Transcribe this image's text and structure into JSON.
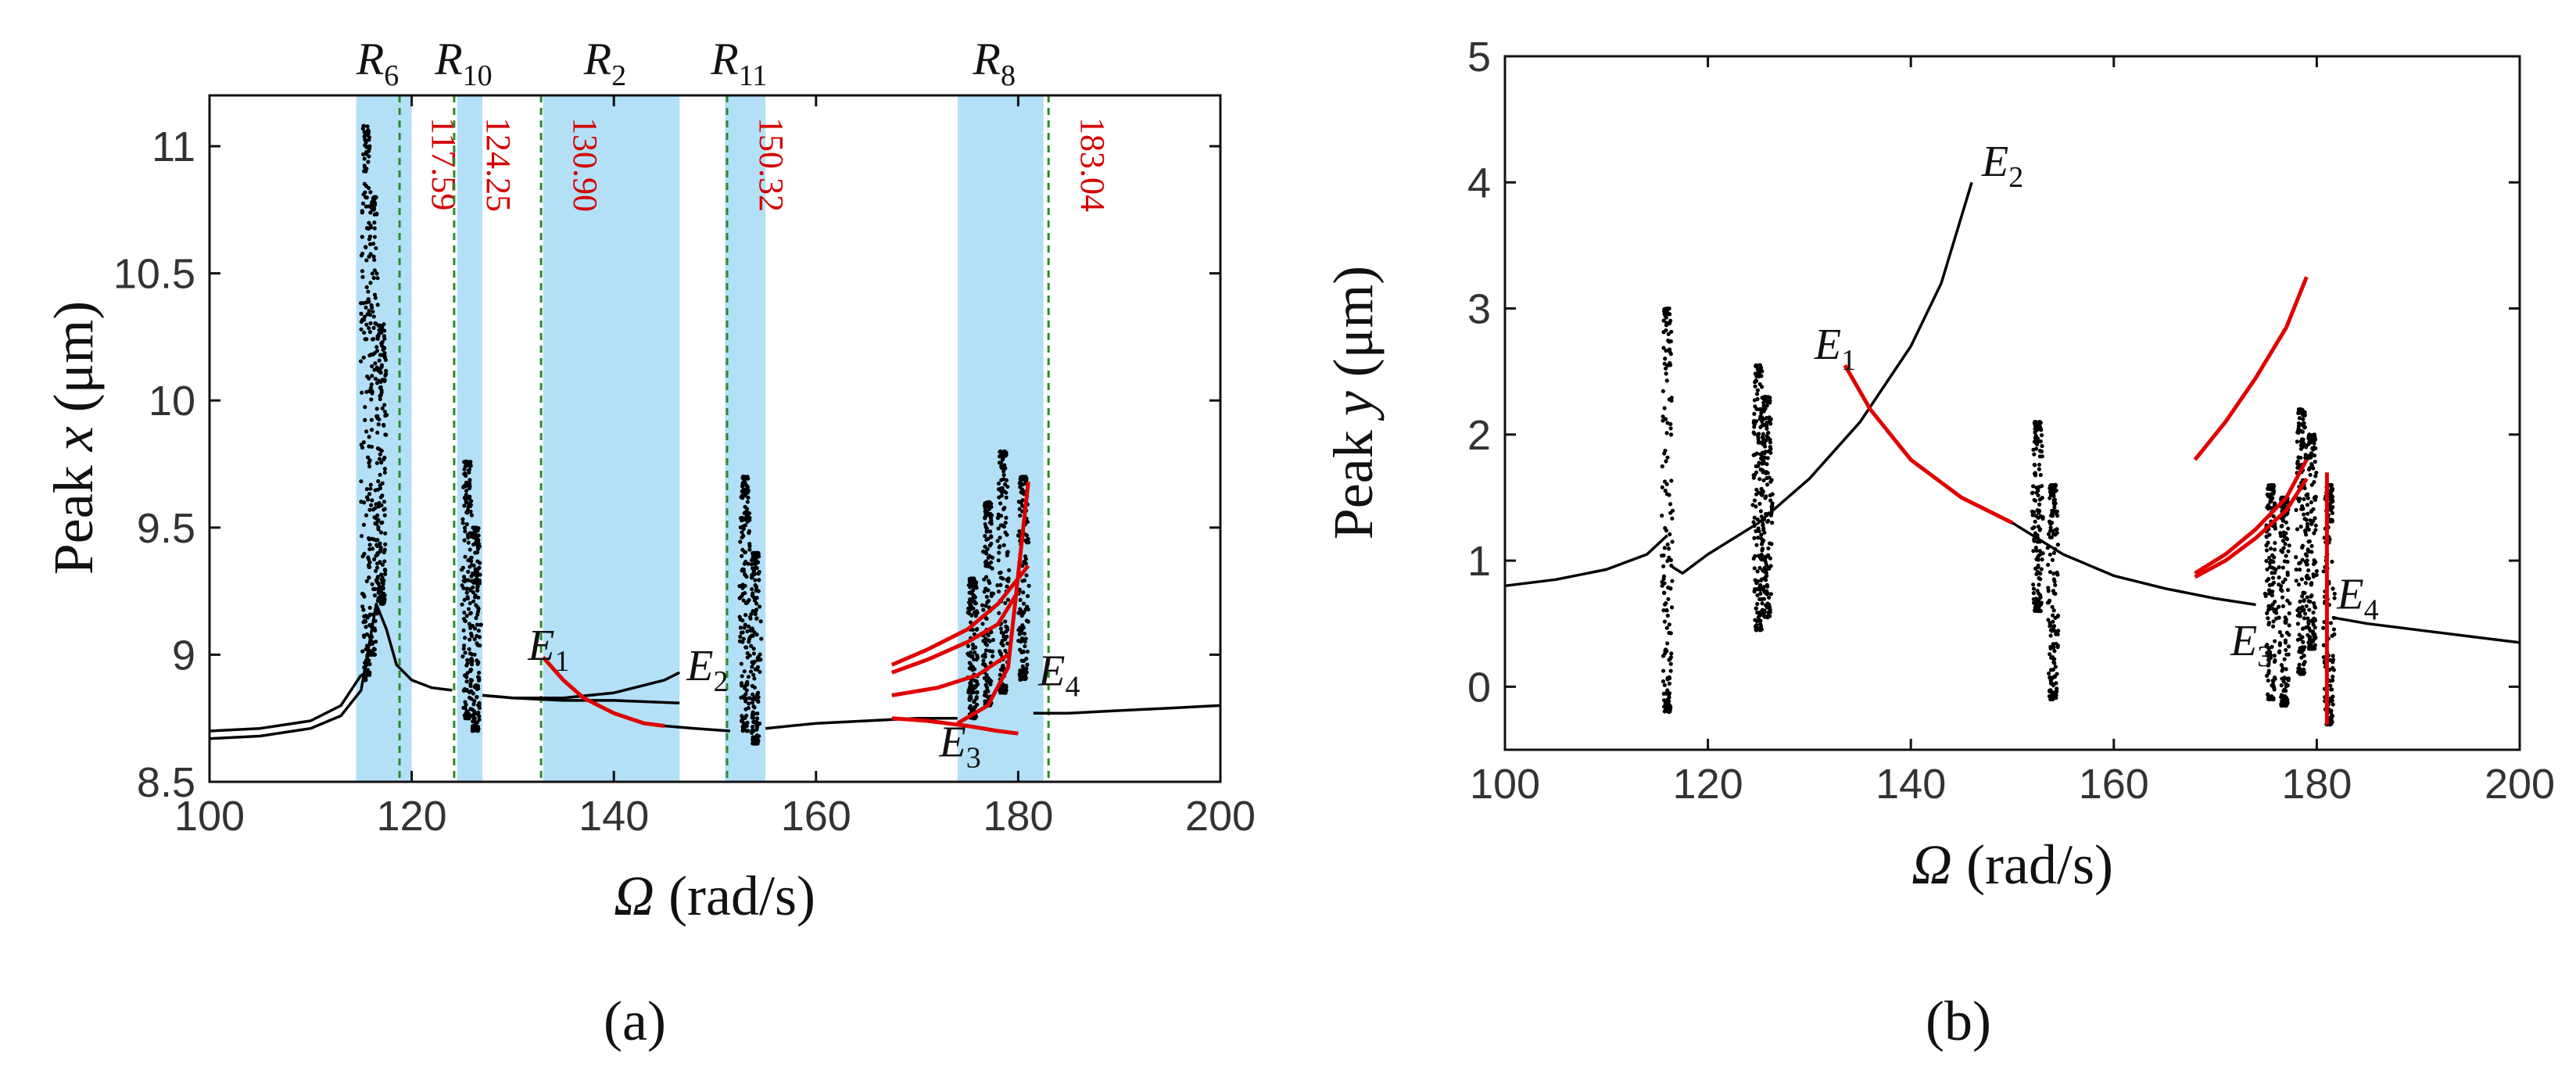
{
  "figure": {
    "panel_a_label": "(a)",
    "panel_b_label": "(b)"
  },
  "chart_data": [
    {
      "type": "scatter",
      "panel": "a",
      "title": "",
      "xlabel": "Ω (rad/s)",
      "ylabel": "Peak x (μm)",
      "xlim": [
        100,
        200
      ],
      "ylim": [
        8.5,
        11.2
      ],
      "xticks": [
        100,
        120,
        140,
        160,
        180,
        200
      ],
      "yticks": [
        8.5,
        9,
        9.5,
        10,
        10.5,
        11
      ],
      "colors": {
        "stable": "#000000",
        "unstable": "#e00000",
        "region": "#b3e0f7",
        "guide": "#2a8a2a",
        "guide_label": "#d40000"
      },
      "regions": [
        {
          "name": "R6",
          "base": "R",
          "sub": "6",
          "x0": 114.5,
          "x1": 120.0
        },
        {
          "name": "R10",
          "base": "R",
          "sub": "10",
          "x0": 124.5,
          "x1": 127.0
        },
        {
          "name": "R2",
          "base": "R",
          "sub": "2",
          "x0": 133.0,
          "x1": 146.5
        },
        {
          "name": "R11",
          "base": "R",
          "sub": "11",
          "x0": 151.0,
          "x1": 155.0
        },
        {
          "name": "R8",
          "base": "R",
          "sub": "8",
          "x0": 174.0,
          "x1": 182.5
        }
      ],
      "guides": [
        {
          "x": 118.8,
          "label": "117.59"
        },
        {
          "x": 124.2,
          "label": "124.25"
        },
        {
          "x": 132.8,
          "label": "130.90"
        },
        {
          "x": 151.2,
          "label": "150.32"
        },
        {
          "x": 183.0,
          "label": "183.04"
        }
      ],
      "series": [
        {
          "name": "branch-lower",
          "color": "stable",
          "x": [
            100,
            105,
            110,
            113,
            115,
            116.5,
            117.5,
            118.5,
            120,
            122,
            124
          ],
          "y": [
            8.67,
            8.68,
            8.71,
            8.76,
            8.86,
            9.2,
            9.1,
            8.96,
            8.9,
            8.87,
            8.86
          ]
        },
        {
          "name": "branch-upper",
          "color": "stable",
          "x": [
            100,
            105,
            110,
            113,
            115
          ],
          "y": [
            8.7,
            8.71,
            8.74,
            8.8,
            8.92
          ]
        },
        {
          "name": "branch-mid-1",
          "color": "stable",
          "x": [
            127,
            130,
            135,
            140,
            145,
            146.5
          ],
          "y": [
            8.84,
            8.83,
            8.83,
            8.85,
            8.9,
            8.93
          ]
        },
        {
          "name": "branch-mid-2",
          "color": "stable",
          "x": [
            127,
            130,
            135,
            140,
            146.5
          ],
          "y": [
            8.84,
            8.83,
            8.82,
            8.82,
            8.81
          ]
        },
        {
          "name": "branch-E1-red",
          "color": "unstable",
          "x": [
            133,
            135,
            137,
            140,
            143,
            145
          ],
          "y": [
            8.99,
            8.9,
            8.83,
            8.77,
            8.73,
            8.72
          ]
        },
        {
          "name": "branch-E1-black",
          "color": "stable",
          "x": [
            145,
            148,
            151.5
          ],
          "y": [
            8.72,
            8.71,
            8.7
          ]
        },
        {
          "name": "branch-flat",
          "color": "stable",
          "x": [
            155,
            160,
            165,
            170,
            174
          ],
          "y": [
            8.71,
            8.73,
            8.74,
            8.75,
            8.75
          ]
        },
        {
          "name": "branch-right",
          "color": "stable",
          "x": [
            181.5,
            185,
            190,
            195,
            200
          ],
          "y": [
            8.77,
            8.77,
            8.78,
            8.79,
            8.8
          ]
        },
        {
          "name": "red-fan-1",
          "color": "unstable",
          "x": [
            167.5,
            171,
            175,
            178,
            181
          ],
          "y": [
            8.96,
            9.02,
            9.1,
            9.2,
            9.35
          ]
        },
        {
          "name": "red-fan-2",
          "color": "unstable",
          "x": [
            167.5,
            171,
            175,
            178,
            180
          ],
          "y": [
            8.93,
            8.98,
            9.05,
            9.12,
            9.25
          ]
        },
        {
          "name": "red-fan-3",
          "color": "unstable",
          "x": [
            167.5,
            172,
            176,
            179
          ],
          "y": [
            8.84,
            8.87,
            8.92,
            9.0
          ]
        },
        {
          "name": "red-fan-4",
          "color": "unstable",
          "x": [
            167.5,
            171,
            175,
            178,
            180
          ],
          "y": [
            8.75,
            8.74,
            8.72,
            8.7,
            8.69
          ]
        },
        {
          "name": "red-fan-5",
          "color": "unstable",
          "x": [
            174,
            177,
            179,
            181
          ],
          "y": [
            8.73,
            8.8,
            8.95,
            9.68
          ]
        }
      ],
      "clouds": [
        {
          "x": 115.5,
          "y0": 8.9,
          "y1": 11.08
        },
        {
          "x": 116.2,
          "y0": 9.0,
          "y1": 10.8
        },
        {
          "x": 117.0,
          "y0": 9.2,
          "y1": 10.3
        },
        {
          "x": 125.5,
          "y0": 8.75,
          "y1": 9.76
        },
        {
          "x": 126.3,
          "y0": 8.7,
          "y1": 9.5
        },
        {
          "x": 153.0,
          "y0": 8.7,
          "y1": 9.7
        },
        {
          "x": 154.0,
          "y0": 8.65,
          "y1": 9.4
        },
        {
          "x": 175.5,
          "y0": 8.75,
          "y1": 9.3
        },
        {
          "x": 177.0,
          "y0": 8.8,
          "y1": 9.6
        },
        {
          "x": 178.5,
          "y0": 8.85,
          "y1": 9.8
        },
        {
          "x": 180.5,
          "y0": 8.9,
          "y1": 9.7
        }
      ],
      "annotations": [
        {
          "text": "E",
          "sub": "1",
          "x": 131.5,
          "y": 8.98
        },
        {
          "text": "E",
          "sub": "2",
          "x": 147.2,
          "y": 8.9
        },
        {
          "text": "E",
          "sub": "3",
          "x": 172.2,
          "y": 8.6
        },
        {
          "text": "E",
          "sub": "4",
          "x": 182.0,
          "y": 8.88
        }
      ]
    },
    {
      "type": "scatter",
      "panel": "b",
      "title": "",
      "xlabel": "Ω (rad/s)",
      "ylabel": "Peak y (μm)",
      "xlim": [
        100,
        200
      ],
      "ylim": [
        -0.5,
        5
      ],
      "xticks": [
        100,
        120,
        140,
        160,
        180,
        200
      ],
      "yticks": [
        0,
        1,
        2,
        3,
        4,
        5
      ],
      "series": [
        {
          "name": "main-decay",
          "color": "stable",
          "x": [
            100,
            105,
            110,
            114,
            116
          ],
          "y": [
            0.8,
            0.85,
            0.93,
            1.05,
            1.2
          ]
        },
        {
          "name": "rise-to-E2",
          "color": "stable",
          "x": [
            116.5,
            117.5,
            120,
            125,
            130,
            135,
            140,
            143,
            146
          ],
          "y": [
            0.95,
            0.9,
            1.05,
            1.3,
            1.65,
            2.1,
            2.7,
            3.2,
            4.0
          ]
        },
        {
          "name": "E1-red-decay",
          "color": "unstable",
          "x": [
            133.5,
            136,
            140,
            145,
            150
          ],
          "y": [
            2.55,
            2.2,
            1.8,
            1.5,
            1.3
          ]
        },
        {
          "name": "decay-mid",
          "color": "stable",
          "x": [
            150,
            155,
            160,
            165,
            170,
            174
          ],
          "y": [
            1.3,
            1.05,
            0.88,
            0.78,
            0.7,
            0.65
          ]
        },
        {
          "name": "decay-right",
          "color": "stable",
          "x": [
            181.5,
            185,
            190,
            195,
            200
          ],
          "y": [
            0.55,
            0.5,
            0.45,
            0.4,
            0.35
          ]
        },
        {
          "name": "red-upper",
          "color": "unstable",
          "x": [
            168,
            171,
            174,
            177,
            179
          ],
          "y": [
            1.8,
            2.1,
            2.45,
            2.85,
            3.25
          ]
        },
        {
          "name": "red-lower-1",
          "color": "unstable",
          "x": [
            168,
            171,
            174,
            177,
            179
          ],
          "y": [
            0.9,
            1.05,
            1.25,
            1.5,
            1.8
          ]
        },
        {
          "name": "red-lower-2",
          "color": "unstable",
          "x": [
            168,
            171,
            174,
            177,
            179
          ],
          "y": [
            0.87,
            1.0,
            1.18,
            1.4,
            1.65
          ]
        },
        {
          "name": "red-E4",
          "color": "unstable",
          "x": [
            181,
            181,
            181
          ],
          "y": [
            -0.3,
            0.5,
            1.7
          ]
        }
      ],
      "clouds": [
        {
          "x": 116.0,
          "y0": -0.2,
          "y1": 3.0
        },
        {
          "x": 125.0,
          "y0": 0.45,
          "y1": 2.55
        },
        {
          "x": 125.8,
          "y0": 0.55,
          "y1": 2.3
        },
        {
          "x": 152.5,
          "y0": 0.6,
          "y1": 2.1
        },
        {
          "x": 154.0,
          "y0": -0.1,
          "y1": 1.6
        },
        {
          "x": 175.5,
          "y0": -0.1,
          "y1": 1.6
        },
        {
          "x": 176.8,
          "y0": -0.15,
          "y1": 1.5
        },
        {
          "x": 178.5,
          "y0": 0.1,
          "y1": 2.2
        },
        {
          "x": 179.5,
          "y0": 0.3,
          "y1": 2.0
        },
        {
          "x": 181.2,
          "y0": -0.3,
          "y1": 1.6
        }
      ],
      "annotations": [
        {
          "text": "E",
          "sub": "1",
          "x": 130.5,
          "y": 2.6
        },
        {
          "text": "E",
          "sub": "2",
          "x": 147.0,
          "y": 4.05
        },
        {
          "text": "E",
          "sub": "3",
          "x": 171.5,
          "y": 0.25
        },
        {
          "text": "E",
          "sub": "4",
          "x": 182.0,
          "y": 0.62
        }
      ]
    }
  ]
}
